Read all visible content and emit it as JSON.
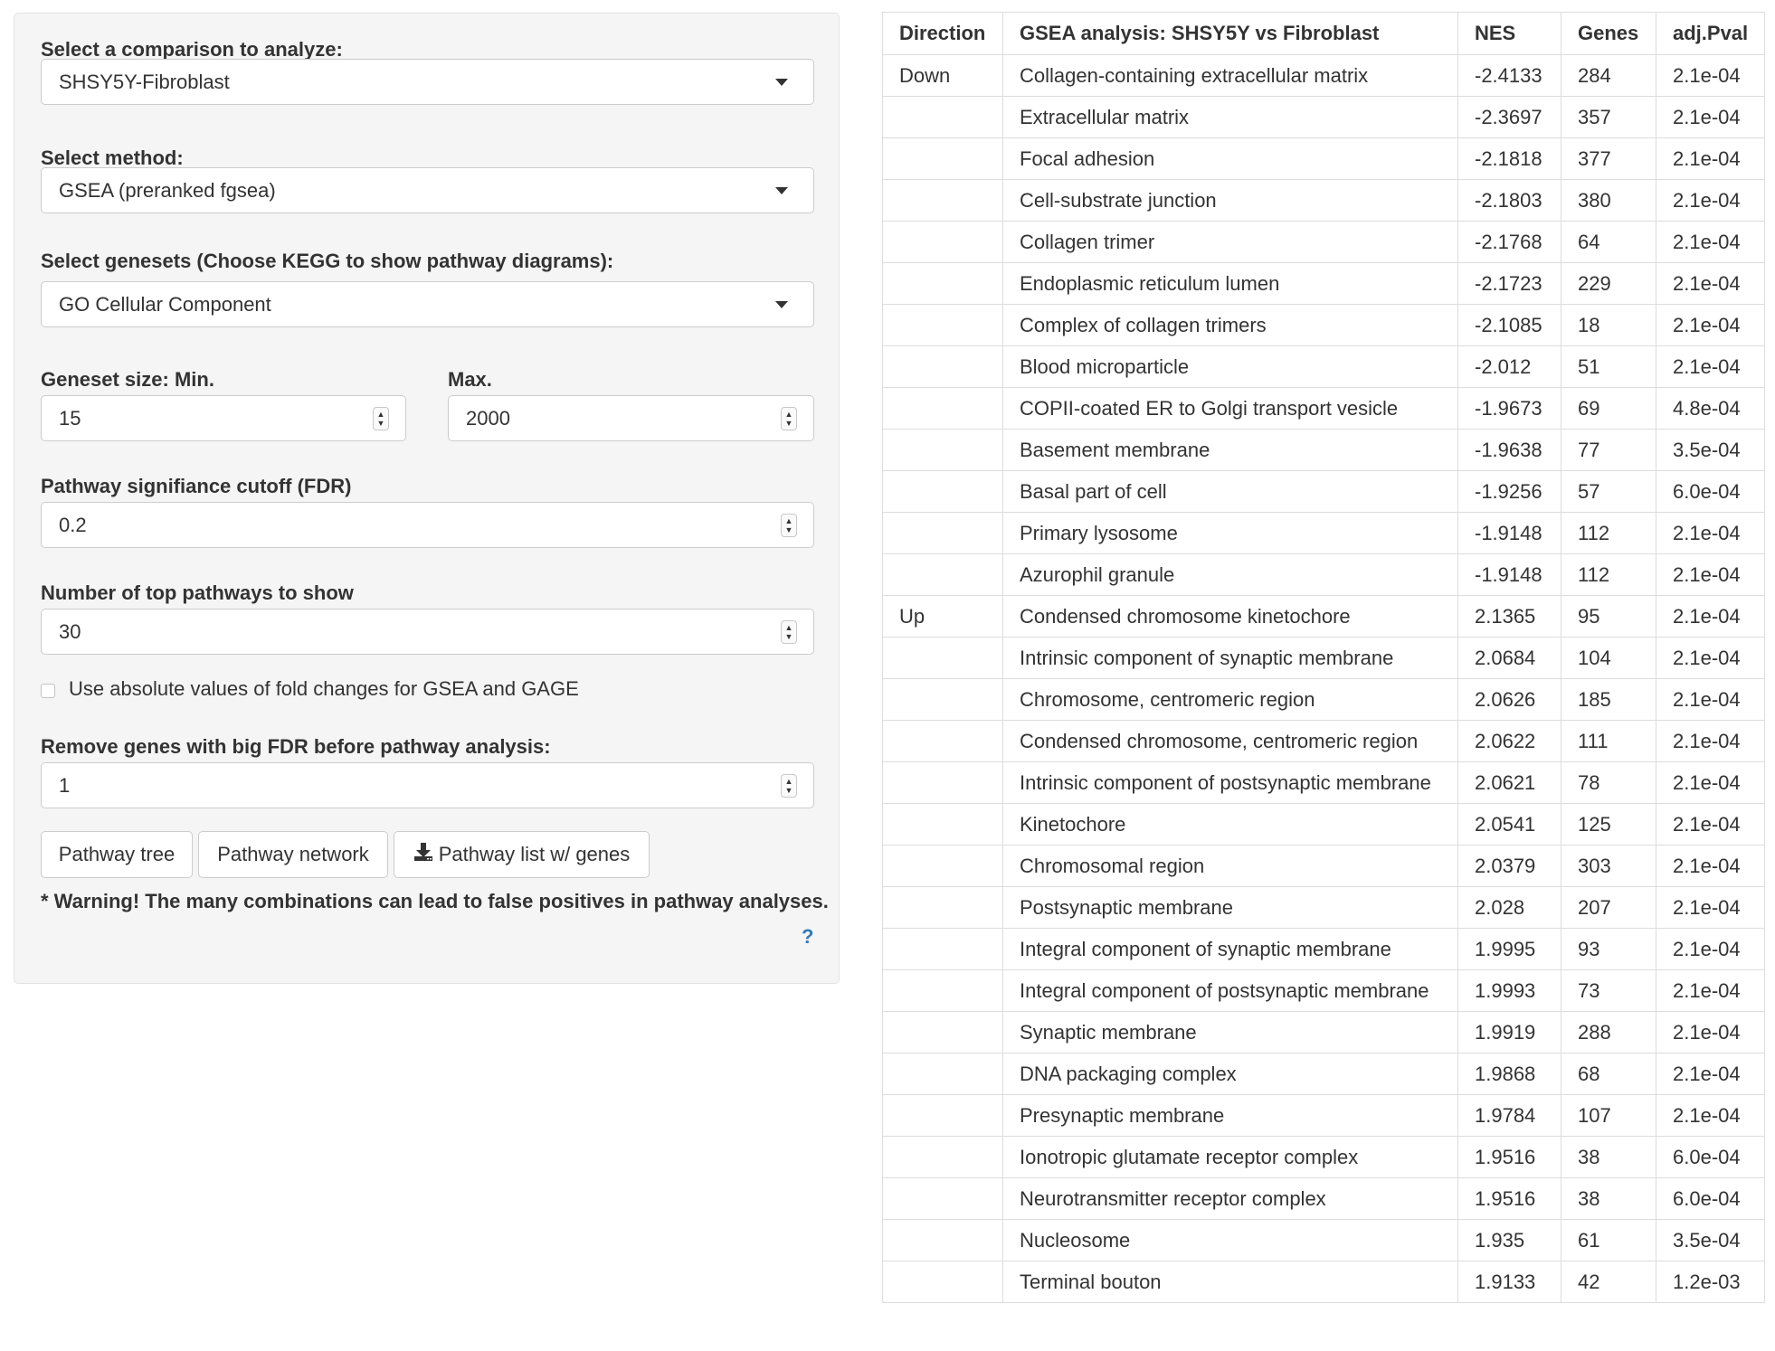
{
  "form": {
    "comparison": {
      "label": "Select a comparison to analyze:",
      "value": "SHSY5Y-Fibroblast"
    },
    "method": {
      "label": "Select method:",
      "value": "GSEA (preranked fgsea)"
    },
    "genesets": {
      "label": "Select genesets (Choose KEGG to show pathway diagrams):",
      "value": "GO Cellular Component"
    },
    "geneset_min": {
      "label": "Geneset size: Min.",
      "value": "15"
    },
    "geneset_max": {
      "label": "Max.",
      "value": "2000"
    },
    "fdr_cutoff": {
      "label": "Pathway signifiance cutoff (FDR)",
      "value": "0.2"
    },
    "top_pathways": {
      "label": "Number of top pathways to show",
      "value": "30"
    },
    "absolute_fold": {
      "label": "Use absolute values of fold changes for GSEA and GAGE",
      "checked": false
    },
    "remove_fdr": {
      "label": "Remove genes with big FDR before pathway analysis:",
      "value": "1"
    }
  },
  "buttons": {
    "pathway_tree": "Pathway tree",
    "pathway_network": "Pathway network",
    "pathway_list": "Pathway list w/ genes"
  },
  "warning": "* Warning! The many combinations can lead to false positives in pathway analyses.",
  "help": "?",
  "table": {
    "headers": [
      "Direction",
      "GSEA analysis: SHSY5Y vs Fibroblast",
      "NES",
      "Genes",
      "adj.Pval"
    ],
    "rows": [
      [
        "Down",
        "Collagen-containing extracellular matrix",
        "-2.4133",
        "284",
        "2.1e-04"
      ],
      [
        "",
        "Extracellular matrix",
        "-2.3697",
        "357",
        "2.1e-04"
      ],
      [
        "",
        "Focal adhesion",
        "-2.1818",
        "377",
        "2.1e-04"
      ],
      [
        "",
        "Cell-substrate junction",
        "-2.1803",
        "380",
        "2.1e-04"
      ],
      [
        "",
        "Collagen trimer",
        "-2.1768",
        "64",
        "2.1e-04"
      ],
      [
        "",
        "Endoplasmic reticulum lumen",
        "-2.1723",
        "229",
        "2.1e-04"
      ],
      [
        "",
        "Complex of collagen trimers",
        "-2.1085",
        "18",
        "2.1e-04"
      ],
      [
        "",
        "Blood microparticle",
        "-2.012",
        "51",
        "2.1e-04"
      ],
      [
        "",
        "COPII-coated ER to Golgi transport vesicle",
        "-1.9673",
        "69",
        "4.8e-04"
      ],
      [
        "",
        "Basement membrane",
        "-1.9638",
        "77",
        "3.5e-04"
      ],
      [
        "",
        "Basal part of cell",
        "-1.9256",
        "57",
        "6.0e-04"
      ],
      [
        "",
        "Primary lysosome",
        "-1.9148",
        "112",
        "2.1e-04"
      ],
      [
        "",
        "Azurophil granule",
        "-1.9148",
        "112",
        "2.1e-04"
      ],
      [
        "Up",
        "Condensed chromosome kinetochore",
        "2.1365",
        "95",
        "2.1e-04"
      ],
      [
        "",
        "Intrinsic component of synaptic membrane",
        "2.0684",
        "104",
        "2.1e-04"
      ],
      [
        "",
        "Chromosome, centromeric region",
        "2.0626",
        "185",
        "2.1e-04"
      ],
      [
        "",
        "Condensed chromosome, centromeric region",
        "2.0622",
        "111",
        "2.1e-04"
      ],
      [
        "",
        "Intrinsic component of postsynaptic membrane",
        "2.0621",
        "78",
        "2.1e-04"
      ],
      [
        "",
        "Kinetochore",
        "2.0541",
        "125",
        "2.1e-04"
      ],
      [
        "",
        "Chromosomal region",
        "2.0379",
        "303",
        "2.1e-04"
      ],
      [
        "",
        "Postsynaptic membrane",
        "2.028",
        "207",
        "2.1e-04"
      ],
      [
        "",
        "Integral component of synaptic membrane",
        "1.9995",
        "93",
        "2.1e-04"
      ],
      [
        "",
        "Integral component of postsynaptic membrane",
        "1.9993",
        "73",
        "2.1e-04"
      ],
      [
        "",
        "Synaptic membrane",
        "1.9919",
        "288",
        "2.1e-04"
      ],
      [
        "",
        "DNA packaging complex",
        "1.9868",
        "68",
        "2.1e-04"
      ],
      [
        "",
        "Presynaptic membrane",
        "1.9784",
        "107",
        "2.1e-04"
      ],
      [
        "",
        "Ionotropic glutamate receptor complex",
        "1.9516",
        "38",
        "6.0e-04"
      ],
      [
        "",
        "Neurotransmitter receptor complex",
        "1.9516",
        "38",
        "6.0e-04"
      ],
      [
        "",
        "Nucleosome",
        "1.935",
        "61",
        "3.5e-04"
      ],
      [
        "",
        "Terminal bouton",
        "1.9133",
        "42",
        "1.2e-03"
      ]
    ]
  }
}
